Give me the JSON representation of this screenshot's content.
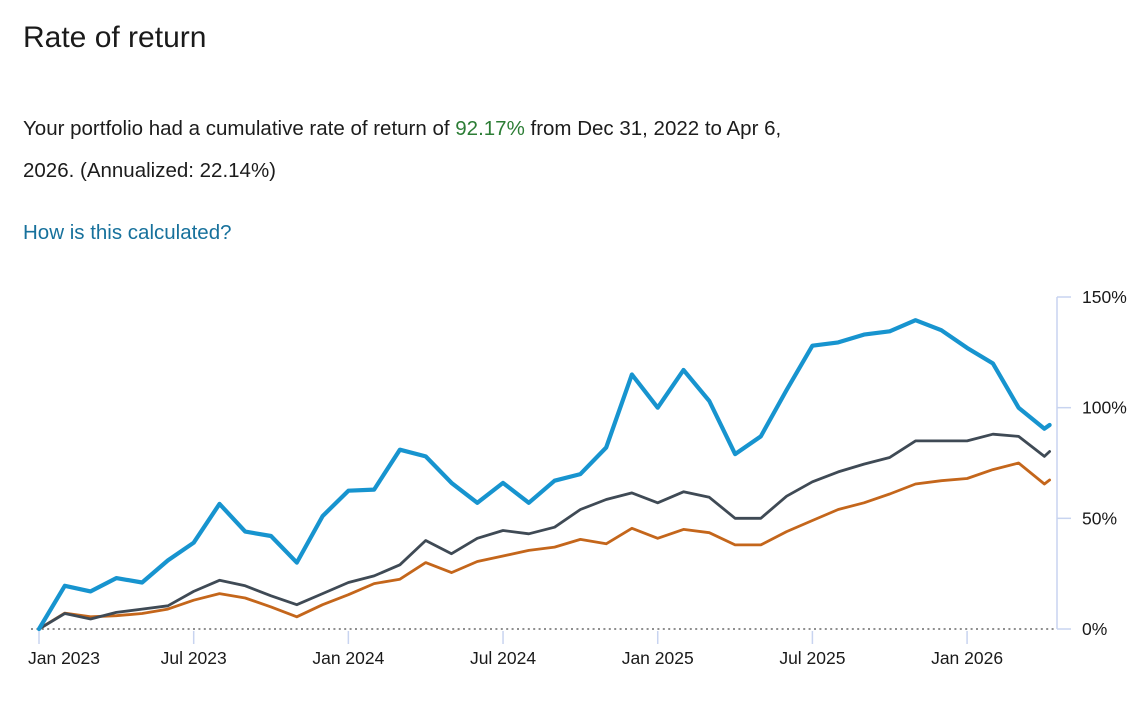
{
  "header": {
    "title": "Rate of return"
  },
  "summary": {
    "text_before_value": "Your portfolio had a cumulative rate of return of ",
    "value": "92.17%",
    "value_color": "#2c7d35",
    "text_after_value_line1": " from Dec 31, 2022 to Apr 6,",
    "line2": "2026. (Annualized: 22.14%)",
    "cumulative_return": "92.17%",
    "annualized_return": "22.14%",
    "period_start": "Dec 31, 2022",
    "period_end": "Apr 6, 2026"
  },
  "link": {
    "label": "How is this calculated?",
    "color": "#17719c"
  },
  "colors": {
    "accent_blue": "#1794cf",
    "dark_gray": "#3f4a55",
    "orange": "#c4661b",
    "axis": "#c8d4f0",
    "zero_line": "#8f8f8f",
    "text": "#1a1a1a",
    "positive_green": "#2c7d35",
    "link_blue": "#17719c"
  },
  "chart_data": {
    "type": "line",
    "title": "Rate of return",
    "x_axis": {
      "start_date": "Dec 31, 2022",
      "end_date": "Apr 6, 2026",
      "tick_labels": [
        "Jan 2023",
        "Jul 2023",
        "Jan 2024",
        "Jul 2024",
        "Jan 2025",
        "Jul 2025",
        "Jan 2026"
      ],
      "tick_positions_months": [
        0,
        6,
        12,
        18,
        24,
        30,
        36
      ]
    },
    "y_axis": {
      "position": "right",
      "unit": "%",
      "tick_labels": [
        "0%",
        "50%",
        "100%",
        "150%"
      ],
      "tick_values": [
        0,
        50,
        100,
        150
      ],
      "range": [
        0,
        150
      ]
    },
    "zero_line_style": "dotted",
    "grid": false,
    "legend": false,
    "x_months": [
      0,
      1,
      2,
      3,
      4,
      5,
      6,
      7,
      8,
      9,
      10,
      11,
      12,
      13,
      14,
      15,
      16,
      17,
      18,
      19,
      20,
      21,
      22,
      23,
      24,
      25,
      26,
      27,
      28,
      29,
      30,
      31,
      32,
      33,
      34,
      35,
      36,
      37,
      38,
      39,
      39.2
    ],
    "series": [
      {
        "id": "line-orange",
        "color": "#c4661b",
        "stroke_width": 2.8,
        "values": [
          0,
          7.2,
          5.5,
          6,
          7,
          9,
          13,
          16,
          14,
          10,
          5.5,
          11,
          15.5,
          20.5,
          22.5,
          30,
          25.5,
          30.5,
          33,
          35.5,
          37,
          40.5,
          38.5,
          45.5,
          41,
          45,
          43.5,
          38,
          38,
          44,
          49,
          54,
          57,
          61,
          65.5,
          67,
          68,
          72,
          75,
          65.5,
          67.3
        ]
      },
      {
        "id": "line-gray",
        "color": "#3f4a55",
        "stroke_width": 2.8,
        "values": [
          0,
          7,
          4.5,
          7.5,
          9,
          10.5,
          17,
          22,
          19.5,
          15,
          11,
          16,
          21,
          24,
          29,
          40,
          34,
          41,
          44.5,
          43,
          46,
          54,
          58.5,
          61.5,
          57,
          62,
          59.5,
          50,
          50,
          60,
          66.5,
          71,
          74.5,
          77.5,
          85,
          85,
          85,
          88,
          87,
          78,
          80.2
        ]
      },
      {
        "id": "line-blue-portfolio",
        "color": "#1794cf",
        "stroke_width": 4.2,
        "values": [
          0,
          19.5,
          17,
          23,
          21,
          31,
          39,
          56.5,
          44,
          42,
          30,
          51,
          62.5,
          63,
          81,
          78,
          66,
          57,
          66,
          57,
          67,
          70,
          82,
          115,
          100,
          117,
          103,
          79,
          87,
          108,
          128,
          129.5,
          133,
          134.5,
          139.5,
          135,
          127,
          120,
          100,
          90.5,
          92.17
        ]
      }
    ]
  }
}
